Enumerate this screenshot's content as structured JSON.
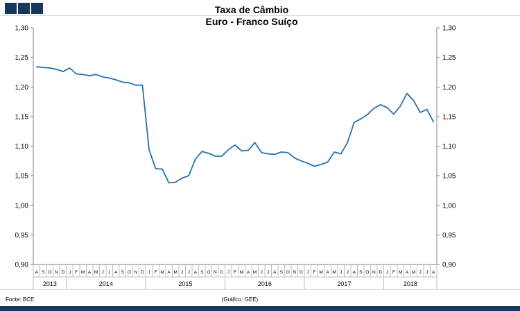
{
  "colors": {
    "accent": "#17375E",
    "line": "#2271B3",
    "axis": "#7F7F7F",
    "grid": "#BFBFBF"
  },
  "header": {
    "title_line1": "Taxa de Câmbio",
    "title_line2": "Euro - Franco Suíço"
  },
  "footer": {
    "source": "Fonte: BCE",
    "credit": "(Gráfico: GEE)"
  },
  "chart_data": {
    "type": "line",
    "title": "Taxa de Câmbio Euro - Franco Suíço",
    "xlabel": "",
    "ylabel": "",
    "legend": "none",
    "grid": "off",
    "line_color": "#2271B3",
    "ylim": [
      0.9,
      1.3
    ],
    "ytick_step": 0.05,
    "ytick_labels": [
      "1,30",
      "1,25",
      "1,20",
      "1,15",
      "1,10",
      "1,05",
      "1,00",
      "0,95",
      "0,90"
    ],
    "month_letters": [
      "A",
      "S",
      "O",
      "N",
      "D",
      "J",
      "F",
      "M",
      "A",
      "M",
      "J",
      "J",
      "A",
      "S",
      "O",
      "N",
      "D",
      "J",
      "F",
      "M",
      "A",
      "M",
      "J",
      "J",
      "A",
      "S",
      "O",
      "N",
      "D",
      "J",
      "F",
      "M",
      "A",
      "M",
      "J",
      "J",
      "A",
      "S",
      "O",
      "N",
      "D",
      "J",
      "F",
      "M",
      "A",
      "M",
      "J",
      "J",
      "A",
      "S",
      "O",
      "N",
      "D",
      "J",
      "F",
      "M",
      "A",
      "M",
      "J",
      "J",
      "A"
    ],
    "years": [
      {
        "label": "2013",
        "months": 5
      },
      {
        "label": "2014",
        "months": 12
      },
      {
        "label": "2015",
        "months": 12
      },
      {
        "label": "2016",
        "months": 12
      },
      {
        "label": "2017",
        "months": 12
      },
      {
        "label": "2018",
        "months": 8
      }
    ],
    "values": [
      1.234,
      1.233,
      1.232,
      1.23,
      1.226,
      1.232,
      1.222,
      1.221,
      1.219,
      1.221,
      1.217,
      1.215,
      1.212,
      1.208,
      1.207,
      1.203,
      1.203,
      1.094,
      1.062,
      1.061,
      1.038,
      1.039,
      1.046,
      1.05,
      1.078,
      1.091,
      1.088,
      1.083,
      1.083,
      1.094,
      1.102,
      1.092,
      1.093,
      1.106,
      1.089,
      1.087,
      1.086,
      1.09,
      1.089,
      1.08,
      1.075,
      1.071,
      1.066,
      1.069,
      1.073,
      1.09,
      1.087,
      1.106,
      1.14,
      1.146,
      1.153,
      1.164,
      1.17,
      1.165,
      1.154,
      1.168,
      1.189,
      1.177,
      1.157,
      1.162,
      1.141
    ]
  }
}
